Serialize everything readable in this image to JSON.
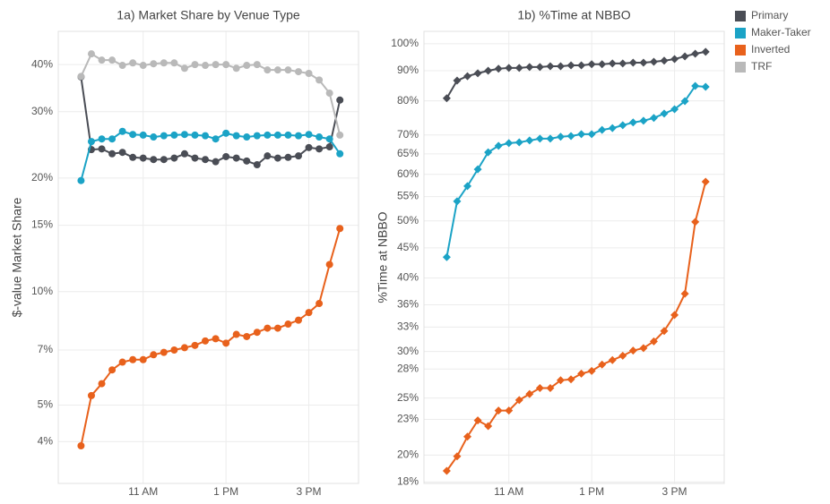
{
  "chart_data": [
    {
      "type": "line",
      "title": "1a) Market Share by Venue Type",
      "y_label": "$-value Market Share",
      "log_y": true,
      "grid": true,
      "marker": "circle",
      "legend": "right",
      "x": [
        9.5,
        9.75,
        10,
        10.25,
        10.5,
        10.75,
        11,
        11.25,
        11.5,
        11.75,
        12,
        12.25,
        12.5,
        12.75,
        13,
        13.25,
        13.5,
        13.75,
        14,
        14.25,
        14.5,
        14.75,
        15,
        15.25,
        15.5,
        15.75
      ],
      "xlim": [
        8.95,
        16.2
      ],
      "xticks": [
        {
          "value": 11,
          "label": "11 AM"
        },
        {
          "value": 13,
          "label": "1 PM"
        },
        {
          "value": 15,
          "label": "3 PM"
        }
      ],
      "ylim": [
        3.1,
        49
      ],
      "yticks": [
        {
          "value": 4,
          "label": "4%"
        },
        {
          "value": 5,
          "label": "5%"
        },
        {
          "value": 7,
          "label": "7%"
        },
        {
          "value": 10,
          "label": "10%"
        },
        {
          "value": 15,
          "label": "15%"
        },
        {
          "value": 20,
          "label": "20%"
        },
        {
          "value": 30,
          "label": "30%"
        },
        {
          "value": 40,
          "label": "40%"
        }
      ],
      "series": [
        {
          "name": "Primary",
          "color": "#4a4d55",
          "values": [
            37.1,
            23.8,
            23.9,
            23.2,
            23.4,
            22.7,
            22.6,
            22.4,
            22.4,
            22.6,
            23.2,
            22.6,
            22.4,
            22.1,
            22.8,
            22.6,
            22.2,
            21.7,
            22.9,
            22.6,
            22.7,
            22.9,
            24.1,
            23.9,
            24.2,
            32.2
          ]
        },
        {
          "name": "Maker-Taker",
          "color": "#1ba3c6",
          "values": [
            19.7,
            25.0,
            25.4,
            25.4,
            26.6,
            26.1,
            26.0,
            25.7,
            25.9,
            26.0,
            26.1,
            26.0,
            25.9,
            25.4,
            26.3,
            25.9,
            25.7,
            25.9,
            26.0,
            26.0,
            26.0,
            25.9,
            26.1,
            25.7,
            25.4,
            23.2
          ]
        },
        {
          "name": "Inverted",
          "color": "#e8611c",
          "values": [
            3.9,
            5.3,
            5.7,
            6.2,
            6.5,
            6.6,
            6.6,
            6.8,
            6.9,
            7.0,
            7.1,
            7.2,
            7.4,
            7.5,
            7.3,
            7.7,
            7.6,
            7.8,
            8.0,
            8.0,
            8.2,
            8.4,
            8.8,
            9.3,
            11.8,
            14.7
          ]
        },
        {
          "name": "TRF",
          "color": "#b9b9b9",
          "values": [
            37.2,
            42.7,
            41.1,
            41.1,
            39.8,
            40.4,
            39.8,
            40.2,
            40.4,
            40.4,
            39.1,
            40.0,
            39.8,
            40.0,
            40.0,
            39.1,
            39.8,
            40.0,
            38.7,
            38.7,
            38.7,
            38.3,
            37.9,
            36.4,
            33.6,
            26.0
          ]
        }
      ]
    },
    {
      "type": "line",
      "title": "1b) %Time at NBBO",
      "y_label": "%Time at NBBO",
      "log_y": true,
      "grid": true,
      "marker": "diamond",
      "x": [
        9.5,
        9.75,
        10,
        10.25,
        10.5,
        10.75,
        11,
        11.25,
        11.5,
        11.75,
        12,
        12.25,
        12.5,
        12.75,
        13,
        13.25,
        13.5,
        13.75,
        14,
        14.25,
        14.5,
        14.75,
        15,
        15.25,
        15.5,
        15.75
      ],
      "xlim": [
        8.95,
        16.2
      ],
      "xticks": [
        {
          "value": 11,
          "label": "11 AM"
        },
        {
          "value": 13,
          "label": "1 PM"
        },
        {
          "value": 15,
          "label": "3 PM"
        }
      ],
      "ylim": [
        17.9,
        105
      ],
      "yticks": [
        {
          "value": 18,
          "label": "18%"
        },
        {
          "value": 20,
          "label": "20%"
        },
        {
          "value": 23,
          "label": "23%"
        },
        {
          "value": 25,
          "label": "25%"
        },
        {
          "value": 28,
          "label": "28%"
        },
        {
          "value": 30,
          "label": "30%"
        },
        {
          "value": 33,
          "label": "33%"
        },
        {
          "value": 36,
          "label": "36%"
        },
        {
          "value": 40,
          "label": "40%"
        },
        {
          "value": 45,
          "label": "45%"
        },
        {
          "value": 50,
          "label": "50%"
        },
        {
          "value": 55,
          "label": "55%"
        },
        {
          "value": 60,
          "label": "60%"
        },
        {
          "value": 65,
          "label": "65%"
        },
        {
          "value": 70,
          "label": "70%"
        },
        {
          "value": 80,
          "label": "80%"
        },
        {
          "value": 90,
          "label": "90%"
        },
        {
          "value": 100,
          "label": "100%"
        }
      ],
      "series": [
        {
          "name": "Primary",
          "color": "#4a4d55",
          "values": [
            80.8,
            86.6,
            88.1,
            89.1,
            90.0,
            90.7,
            91.0,
            91.0,
            91.3,
            91.3,
            91.6,
            91.6,
            91.9,
            91.9,
            92.3,
            92.3,
            92.6,
            92.6,
            92.9,
            92.9,
            93.2,
            93.6,
            94.2,
            95.2,
            96.2,
            96.9
          ]
        },
        {
          "name": "Maker-Taker",
          "color": "#1ba3c6",
          "values": [
            43.4,
            54.0,
            57.3,
            61.2,
            65.4,
            67.1,
            67.8,
            68.0,
            68.5,
            69.0,
            69.0,
            69.5,
            69.7,
            70.2,
            70.2,
            71.4,
            71.9,
            72.7,
            73.5,
            74.0,
            74.8,
            76.1,
            77.4,
            79.9,
            84.8,
            84.5
          ]
        },
        {
          "name": "Inverted",
          "color": "#e8611c",
          "values": [
            18.8,
            19.9,
            21.5,
            22.9,
            22.4,
            23.8,
            23.8,
            24.8,
            25.4,
            26.0,
            26.0,
            26.8,
            26.9,
            27.5,
            27.8,
            28.5,
            29.0,
            29.5,
            30.1,
            30.4,
            31.2,
            32.5,
            34.6,
            37.6,
            49.8,
            58.3
          ]
        }
      ]
    }
  ]
}
